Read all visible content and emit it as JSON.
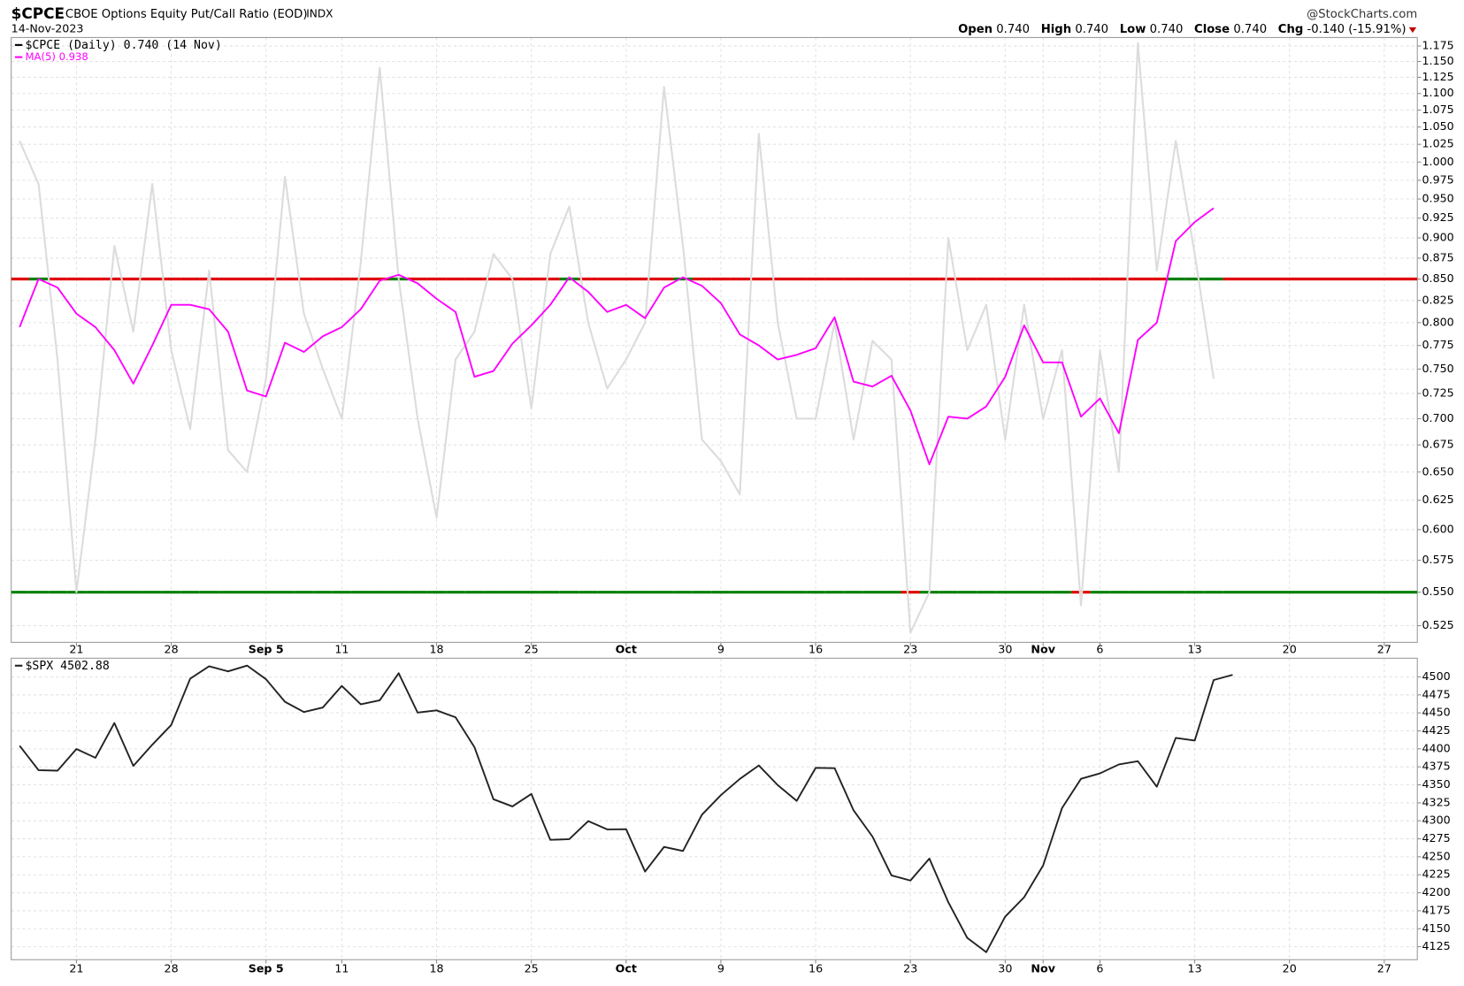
{
  "header": {
    "symbol": "$CPCE",
    "name": "CBOE Options Equity Put/Call Ratio (EOD)",
    "exchange": "INDX",
    "date": "14-Nov-2023",
    "source": "@StockCharts.com",
    "quote": [
      {
        "label": "Open",
        "value": "0.740"
      },
      {
        "label": "High",
        "value": "0.740"
      },
      {
        "label": "Low",
        "value": "0.740"
      },
      {
        "label": "Close",
        "value": "0.740"
      },
      {
        "label": "Chg",
        "value": "-0.140 (-15.91%)"
      }
    ]
  },
  "chart_data": [
    {
      "type": "line",
      "log": true,
      "grid": true,
      "x": [
        "2023-08-16",
        "2023-08-17",
        "2023-08-18",
        "2023-08-21",
        "2023-08-22",
        "2023-08-23",
        "2023-08-24",
        "2023-08-25",
        "2023-08-28",
        "2023-08-29",
        "2023-08-30",
        "2023-08-31",
        "2023-09-01",
        "2023-09-05",
        "2023-09-06",
        "2023-09-07",
        "2023-09-08",
        "2023-09-11",
        "2023-09-12",
        "2023-09-13",
        "2023-09-14",
        "2023-09-15",
        "2023-09-18",
        "2023-09-19",
        "2023-09-20",
        "2023-09-21",
        "2023-09-22",
        "2023-09-25",
        "2023-09-26",
        "2023-09-27",
        "2023-09-28",
        "2023-09-29",
        "2023-10-02",
        "2023-10-03",
        "2023-10-04",
        "2023-10-05",
        "2023-10-06",
        "2023-10-09",
        "2023-10-10",
        "2023-10-11",
        "2023-10-12",
        "2023-10-13",
        "2023-10-16",
        "2023-10-17",
        "2023-10-18",
        "2023-10-19",
        "2023-10-20",
        "2023-10-23",
        "2023-10-24",
        "2023-10-25",
        "2023-10-26",
        "2023-10-27",
        "2023-10-30",
        "2023-10-31",
        "2023-11-01",
        "2023-11-02",
        "2023-11-03",
        "2023-11-06",
        "2023-11-07",
        "2023-11-08",
        "2023-11-09",
        "2023-11-10",
        "2023-11-13",
        "2023-11-14"
      ],
      "series": [
        {
          "name": "$CPCE (Daily) 0.740 (14 Nov)",
          "color": "#dcdcdc",
          "legend_color": "#000000",
          "values": [
            1.03,
            0.97,
            0.76,
            0.55,
            0.68,
            0.89,
            0.79,
            0.97,
            0.77,
            0.69,
            0.86,
            0.67,
            0.65,
            0.74,
            0.98,
            0.81,
            0.75,
            0.7,
            0.87,
            1.14,
            0.85,
            0.7,
            0.61,
            0.76,
            0.79,
            0.88,
            0.85,
            0.71,
            0.88,
            0.94,
            0.8,
            0.73,
            0.76,
            0.8,
            1.11,
            0.89,
            0.68,
            0.66,
            0.63,
            1.04,
            0.8,
            0.7,
            0.7,
            0.8,
            0.68,
            0.78,
            0.76,
            0.52,
            0.55,
            0.9,
            0.77,
            0.82,
            0.68,
            0.82,
            0.7,
            0.77,
            0.54,
            0.77,
            0.65,
            1.18,
            0.86,
            1.03,
            0.88,
            0.74
          ]
        },
        {
          "name": "MA(5) 0.938",
          "color": "#ff00ff",
          "values": [
            0.795,
            0.85,
            0.84,
            0.81,
            0.795,
            0.77,
            0.735,
            0.775,
            0.82,
            0.82,
            0.815,
            0.79,
            0.728,
            0.722,
            0.778,
            0.768,
            0.785,
            0.795,
            0.815,
            0.848,
            0.855,
            0.845,
            0.827,
            0.812,
            0.742,
            0.748,
            0.777,
            0.797,
            0.82,
            0.852,
            0.835,
            0.812,
            0.82,
            0.805,
            0.84,
            0.852,
            0.842,
            0.822,
            0.787,
            0.775,
            0.76,
            0.765,
            0.772,
            0.806,
            0.737,
            0.732,
            0.743,
            0.708,
            0.657,
            0.702,
            0.7,
            0.712,
            0.742,
            0.797,
            0.757,
            0.757,
            0.702,
            0.72,
            0.686,
            0.781,
            0.8,
            0.896,
            0.92,
            0.938
          ]
        }
      ],
      "levels": [
        0.85,
        0.55
      ],
      "signal_colors": [
        "#e00000",
        "#008000"
      ],
      "ylim": [
        0.513,
        1.189
      ],
      "yticks": [
        0.525,
        {
          "value": 0.55,
          "label": "0.550"
        },
        0.575,
        {
          "value": 0.6,
          "label": "0.600"
        },
        0.625,
        {
          "value": 0.65,
          "label": "0.650"
        },
        0.675,
        {
          "value": 0.7,
          "label": "0.700"
        },
        0.725,
        {
          "value": 0.75,
          "label": "0.750"
        },
        0.775,
        {
          "value": 0.8,
          "label": "0.800"
        },
        0.825,
        {
          "value": 0.85,
          "label": "0.850"
        },
        0.875,
        {
          "value": 0.9,
          "label": "0.900"
        },
        0.925,
        {
          "value": 0.95,
          "label": "0.950"
        },
        0.975,
        {
          "value": 1,
          "label": "1.000"
        },
        1.025,
        {
          "value": 1.05,
          "label": "1.050"
        },
        1.075,
        {
          "value": 1.1,
          "label": "1.100"
        },
        1.125,
        {
          "value": 1.15,
          "label": "1.150"
        },
        1.175
      ],
      "xticks": [
        {
          "value": "2023-08-21",
          "label": "21"
        },
        {
          "value": "2023-08-28",
          "label": "28"
        },
        {
          "value": "2023-09-05",
          "label": "Sep 5"
        },
        {
          "value": "2023-09-11",
          "label": "11"
        },
        {
          "value": "2023-09-18",
          "label": "18"
        },
        {
          "value": "2023-09-25",
          "label": "25"
        },
        {
          "value": "2023-10-02",
          "label": "Oct"
        },
        {
          "value": "2023-10-09",
          "label": "9"
        },
        {
          "value": "2023-10-16",
          "label": "16"
        },
        {
          "value": "2023-10-23",
          "label": "23"
        },
        {
          "value": "2023-10-30",
          "label": "30"
        },
        {
          "value": "2023-11-01",
          "label": "Nov"
        },
        {
          "value": "2023-11-06",
          "label": "6"
        },
        {
          "value": "2023-11-13",
          "label": "13"
        },
        {
          "value": "2023-11-20",
          "label": "20"
        },
        {
          "value": "2023-11-27",
          "label": "27"
        }
      ]
    },
    {
      "type": "line",
      "grid": true,
      "x": [
        "2023-08-16",
        "2023-08-17",
        "2023-08-18",
        "2023-08-21",
        "2023-08-22",
        "2023-08-23",
        "2023-08-24",
        "2023-08-25",
        "2023-08-28",
        "2023-08-29",
        "2023-08-30",
        "2023-08-31",
        "2023-09-01",
        "2023-09-05",
        "2023-09-06",
        "2023-09-07",
        "2023-09-08",
        "2023-09-11",
        "2023-09-12",
        "2023-09-13",
        "2023-09-14",
        "2023-09-15",
        "2023-09-18",
        "2023-09-19",
        "2023-09-20",
        "2023-09-21",
        "2023-09-22",
        "2023-09-25",
        "2023-09-26",
        "2023-09-27",
        "2023-09-28",
        "2023-09-29",
        "2023-10-02",
        "2023-10-03",
        "2023-10-04",
        "2023-10-05",
        "2023-10-06",
        "2023-10-09",
        "2023-10-10",
        "2023-10-11",
        "2023-10-12",
        "2023-10-13",
        "2023-10-16",
        "2023-10-17",
        "2023-10-18",
        "2023-10-19",
        "2023-10-20",
        "2023-10-23",
        "2023-10-24",
        "2023-10-25",
        "2023-10-26",
        "2023-10-27",
        "2023-10-30",
        "2023-10-31",
        "2023-11-01",
        "2023-11-02",
        "2023-11-03",
        "2023-11-06",
        "2023-11-07",
        "2023-11-08",
        "2023-11-09",
        "2023-11-10",
        "2023-11-13",
        "2023-11-14",
        "2023-11-15"
      ],
      "series": [
        {
          "name": "$SPX 4502.88",
          "color": "#222222",
          "values": [
            4404.33,
            4370.36,
            4369.71,
            4399.77,
            4387.55,
            4436.01,
            4376.31,
            4405.71,
            4433.31,
            4497.63,
            4514.87,
            4507.66,
            4515.77,
            4496.83,
            4465.48,
            4451.14,
            4457.49,
            4487.46,
            4461.9,
            4467.44,
            4505.1,
            4450.32,
            4453.53,
            4443.95,
            4402.2,
            4330.0,
            4320.06,
            4337.44,
            4273.53,
            4274.51,
            4299.7,
            4288.05,
            4288.39,
            4229.45,
            4263.75,
            4258.19,
            4308.5,
            4335.66,
            4358.24,
            4376.95,
            4349.61,
            4327.78,
            4373.63,
            4373.2,
            4314.6,
            4278.0,
            4224.16,
            4217.04,
            4247.68,
            4186.77,
            4137.23,
            4117.37,
            4166.82,
            4193.8,
            4237.86,
            4317.78,
            4358.34,
            4365.98,
            4378.38,
            4382.78,
            4347.35,
            4415.24,
            4411.55,
            4495.7,
            4502.88
          ]
        }
      ],
      "ylim": [
        4107,
        4526
      ],
      "yticks": [
        4125,
        4150,
        4175,
        4200,
        4225,
        4250,
        4275,
        4300,
        4325,
        4350,
        4375,
        4400,
        4425,
        4450,
        4475,
        4500
      ],
      "xticks": [
        {
          "value": "2023-08-21",
          "label": "21"
        },
        {
          "value": "2023-08-28",
          "label": "28"
        },
        {
          "value": "2023-09-05",
          "label": "Sep 5"
        },
        {
          "value": "2023-09-11",
          "label": "11"
        },
        {
          "value": "2023-09-18",
          "label": "18"
        },
        {
          "value": "2023-09-25",
          "label": "25"
        },
        {
          "value": "2023-10-02",
          "label": "Oct"
        },
        {
          "value": "2023-10-09",
          "label": "9"
        },
        {
          "value": "2023-10-16",
          "label": "16"
        },
        {
          "value": "2023-10-23",
          "label": "23"
        },
        {
          "value": "2023-10-30",
          "label": "30"
        },
        {
          "value": "2023-11-01",
          "label": "Nov"
        },
        {
          "value": "2023-11-06",
          "label": "6"
        },
        {
          "value": "2023-11-13",
          "label": "13"
        },
        {
          "value": "2023-11-20",
          "label": "20"
        },
        {
          "value": "2023-11-27",
          "label": "27"
        }
      ]
    }
  ]
}
